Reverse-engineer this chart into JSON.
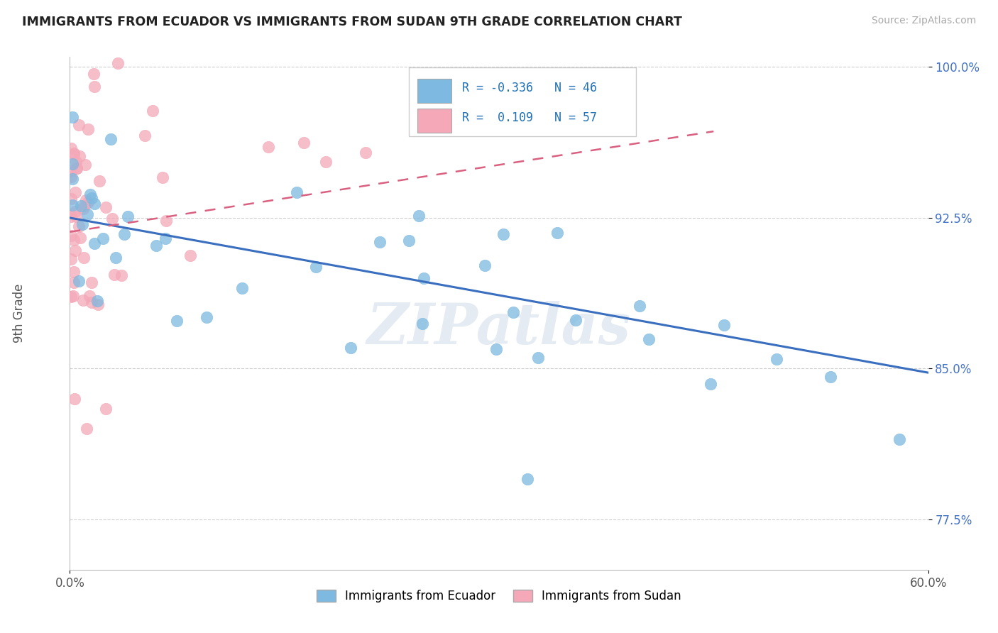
{
  "title": "IMMIGRANTS FROM ECUADOR VS IMMIGRANTS FROM SUDAN 9TH GRADE CORRELATION CHART",
  "source": "Source: ZipAtlas.com",
  "ylabel": "9th Grade",
  "xlim": [
    0.0,
    0.6
  ],
  "ylim": [
    0.75,
    1.005
  ],
  "xtick_vals": [
    0.0,
    0.6
  ],
  "xtick_labels": [
    "0.0%",
    "60.0%"
  ],
  "ytick_vals": [
    0.775,
    0.85,
    0.925,
    1.0
  ],
  "ytick_labels": [
    "77.5%",
    "85.0%",
    "92.5%",
    "100.0%"
  ],
  "ecuador_color": "#7db9e0",
  "sudan_color": "#f4a8b8",
  "ecuador_line_color": "#3a6fbf",
  "sudan_line_color": "#d96080",
  "watermark_text": "ZIPatlas",
  "legend_ec_R": "R = -0.336",
  "legend_ec_N": "N = 46",
  "legend_su_R": "R =  0.109",
  "legend_su_N": "N = 57",
  "ec_line_x0": 0.0,
  "ec_line_y0": 0.925,
  "ec_line_x1": 0.6,
  "ec_line_y1": 0.848,
  "su_line_x0": 0.0,
  "su_line_y0": 0.918,
  "su_line_x1": 0.45,
  "su_line_y1": 0.968
}
